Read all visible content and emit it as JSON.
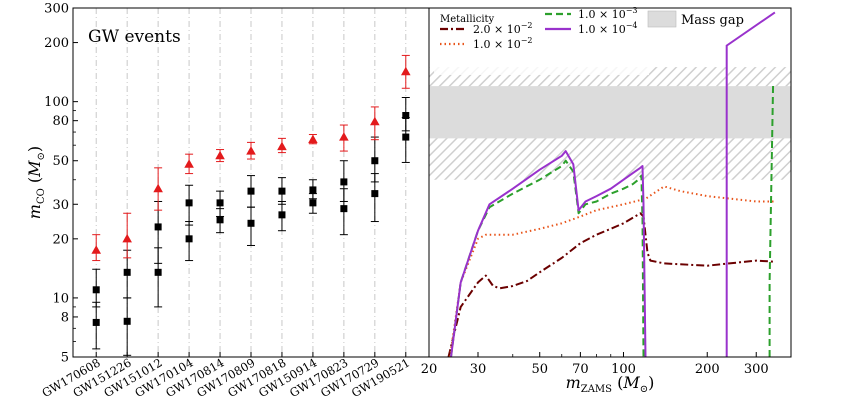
{
  "chart_data": [
    {
      "type": "scatter",
      "title": "GW events",
      "ylabel": "m_CO (M_⊙)",
      "y_scale": "log",
      "ylim": [
        5,
        300
      ],
      "y_ticks": [
        5,
        8,
        10,
        20,
        30,
        50,
        80,
        100,
        200,
        300
      ],
      "categories": [
        "GW170608",
        "GW151226",
        "GW151012",
        "GW170104",
        "GW170814",
        "GW170809",
        "GW170818",
        "GW150914",
        "GW170823",
        "GW170729",
        "GW190521"
      ],
      "series": [
        {
          "marker": "square",
          "color": "#000000",
          "points": [
            {
              "x": "GW170608",
              "y": 11,
              "err_low": 2,
              "err_high": 3
            },
            {
              "x": "GW170608",
              "y": 7.5,
              "err_low": 2,
              "err_high": 2
            },
            {
              "x": "GW151226",
              "y": 13.5,
              "err_low": 3.5,
              "err_high": 4
            },
            {
              "x": "GW151226",
              "y": 7.6,
              "err_low": 2.5,
              "err_high": 2.4
            },
            {
              "x": "GW151012",
              "y": 23,
              "err_low": 8,
              "err_high": 8
            },
            {
              "x": "GW151012",
              "y": 13.5,
              "err_low": 4.5,
              "err_high": 4.5
            },
            {
              "x": "GW170104",
              "y": 30.5,
              "err_low": 7,
              "err_high": 7
            },
            {
              "x": "GW170104",
              "y": 20,
              "err_low": 4.5,
              "err_high": 4.5
            },
            {
              "x": "GW170814",
              "y": 30.5,
              "err_low": 4.5,
              "err_high": 4.5
            },
            {
              "x": "GW170814",
              "y": 25,
              "err_low": 3.5,
              "err_high": 3.5
            },
            {
              "x": "GW170809",
              "y": 35,
              "err_low": 6,
              "err_high": 7
            },
            {
              "x": "GW170809",
              "y": 24,
              "err_low": 5.5,
              "err_high": 5
            },
            {
              "x": "GW170818",
              "y": 35,
              "err_low": 5,
              "err_high": 6
            },
            {
              "x": "GW170818",
              "y": 26.5,
              "err_low": 4.5,
              "err_high": 4.5
            },
            {
              "x": "GW150914",
              "y": 35.5,
              "err_low": 3.5,
              "err_high": 4.5
            },
            {
              "x": "GW150914",
              "y": 30.5,
              "err_low": 3.5,
              "err_high": 3.5
            },
            {
              "x": "GW170823",
              "y": 39,
              "err_low": 8,
              "err_high": 11
            },
            {
              "x": "GW170823",
              "y": 28.5,
              "err_low": 7.5,
              "err_high": 7.5
            },
            {
              "x": "GW170729",
              "y": 50,
              "err_low": 11,
              "err_high": 16
            },
            {
              "x": "GW170729",
              "y": 34,
              "err_low": 9.5,
              "err_high": 9
            },
            {
              "x": "GW190521",
              "y": 85,
              "err_low": 14,
              "err_high": 20
            },
            {
              "x": "GW190521",
              "y": 66,
              "err_low": 17,
              "err_high": 17
            }
          ]
        },
        {
          "marker": "triangle",
          "color": "#e31a1c",
          "points": [
            {
              "x": "GW170608",
              "y": 17.5,
              "err_low": 2,
              "err_high": 3.5
            },
            {
              "x": "GW151226",
              "y": 20,
              "err_low": 4,
              "err_high": 7
            },
            {
              "x": "GW151012",
              "y": 36,
              "err_low": 8,
              "err_high": 10
            },
            {
              "x": "GW170104",
              "y": 48,
              "err_low": 5,
              "err_high": 6
            },
            {
              "x": "GW170814",
              "y": 53,
              "err_low": 3.5,
              "err_high": 4
            },
            {
              "x": "GW170809",
              "y": 56,
              "err_low": 5,
              "err_high": 6
            },
            {
              "x": "GW170818",
              "y": 59,
              "err_low": 4,
              "err_high": 6
            },
            {
              "x": "GW150914",
              "y": 64,
              "err_low": 3,
              "err_high": 4
            },
            {
              "x": "GW170823",
              "y": 66,
              "err_low": 10,
              "err_high": 10
            },
            {
              "x": "GW170729",
              "y": 79,
              "err_low": 15,
              "err_high": 15
            },
            {
              "x": "GW190521",
              "y": 142,
              "err_low": 25,
              "err_high": 30
            }
          ]
        }
      ]
    },
    {
      "type": "line",
      "xlabel": "m_ZAMS (M_⊙)",
      "x_scale": "log",
      "xlim": [
        20,
        400
      ],
      "x_ticks": [
        20,
        30,
        50,
        70,
        100,
        200,
        300
      ],
      "y_scale": "log",
      "ylim": [
        5,
        300
      ],
      "mass_gap": {
        "label": "Mass gap",
        "dense": [
          65,
          120
        ],
        "hatched": [
          40,
          150
        ],
        "color": "#dcdcdc"
      },
      "legend_title": "Metallicity",
      "legend_position": "top",
      "series": [
        {
          "name_mantissa": "2.0",
          "name_exponent": "−2",
          "color": "#6b0000",
          "dash": "dashdot",
          "points": [
            [
              23.5,
              5
            ],
            [
              26,
              9
            ],
            [
              30,
              12
            ],
            [
              32,
              13
            ],
            [
              34,
              11.5
            ],
            [
              36,
              11.2
            ],
            [
              40,
              11.5
            ],
            [
              45,
              12.2
            ],
            [
              50,
              13.5
            ],
            [
              60,
              16
            ],
            [
              70,
              19
            ],
            [
              80,
              21
            ],
            [
              90,
              22.5
            ],
            [
              100,
              24
            ],
            [
              110,
              26
            ],
            [
              115,
              27
            ],
            [
              118,
              26
            ],
            [
              120,
              21
            ],
            [
              122,
              17
            ],
            [
              125,
              15.5
            ],
            [
              140,
              15
            ],
            [
              200,
              14.6
            ],
            [
              300,
              15.5
            ],
            [
              350,
              15.3
            ]
          ]
        },
        {
          "name_mantissa": "1.0",
          "name_exponent": "−2",
          "color": "#e8541a",
          "dash": "dotted",
          "points": [
            [
              23.8,
              5
            ],
            [
              26,
              12
            ],
            [
              30,
              20
            ],
            [
              32,
              21
            ],
            [
              40,
              21
            ],
            [
              50,
              22.5
            ],
            [
              60,
              24
            ],
            [
              70,
              26
            ],
            [
              80,
              28
            ],
            [
              100,
              30
            ],
            [
              120,
              32
            ],
            [
              140,
              37
            ],
            [
              160,
              35
            ],
            [
              200,
              33
            ],
            [
              300,
              31
            ],
            [
              350,
              31
            ]
          ]
        },
        {
          "name_mantissa": "1.0",
          "name_exponent": "−3",
          "color": "#2ca02c",
          "dash": "dashed",
          "points": [
            [
              24,
              5
            ],
            [
              26,
              12
            ],
            [
              30,
              22
            ],
            [
              33,
              29
            ],
            [
              40,
              34
            ],
            [
              50,
              40
            ],
            [
              60,
              47
            ],
            [
              62,
              50
            ],
            [
              66,
              44
            ],
            [
              69,
              27
            ],
            [
              73,
              30
            ],
            [
              80,
              31
            ],
            [
              90,
              34
            ],
            [
              100,
              36
            ],
            [
              108,
              38
            ],
            [
              113,
              40
            ],
            [
              116,
              42
            ],
            [
              117,
              25
            ],
            [
              118,
              5
            ]
          ]
        },
        {
          "name_mantissa": "1.0",
          "name_exponent": "−4",
          "color": "#9932cc",
          "dash": "solid",
          "points": [
            [
              24,
              5
            ],
            [
              26,
              12
            ],
            [
              30,
              22
            ],
            [
              33,
              30
            ],
            [
              40,
              36
            ],
            [
              50,
              45
            ],
            [
              60,
              53
            ],
            [
              62,
              56
            ],
            [
              66,
              48
            ],
            [
              69,
              28
            ],
            [
              73,
              31
            ],
            [
              80,
              33
            ],
            [
              90,
              36
            ],
            [
              100,
              40
            ],
            [
              110,
              44
            ],
            [
              115,
              46
            ],
            [
              117,
              47
            ],
            [
              118,
              30
            ],
            [
              120,
              5
            ]
          ]
        }
      ],
      "segments": [
        {
          "series": 2,
          "points": [
            [
              335,
              5
            ],
            [
              335,
              12
            ],
            [
              345,
              123
            ]
          ]
        },
        {
          "series": 3,
          "points": [
            [
              235,
              5
            ],
            [
              235,
              193
            ],
            [
              350,
              285
            ]
          ]
        }
      ]
    }
  ]
}
